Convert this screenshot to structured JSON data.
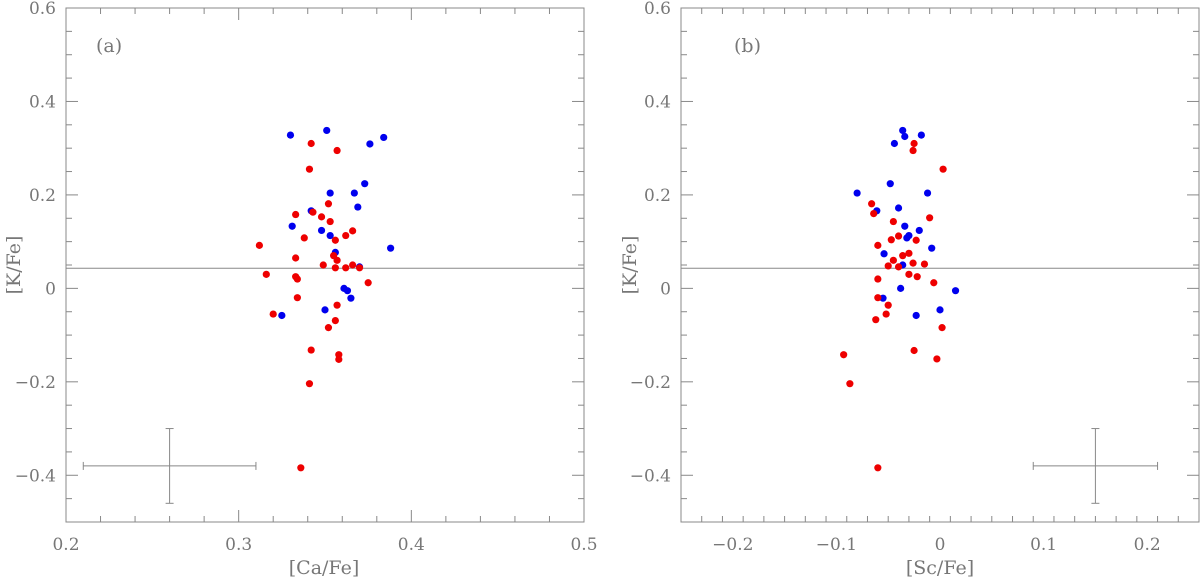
{
  "colors": {
    "red": "#ee0000",
    "blue": "#0000ee",
    "axis": "#888888"
  },
  "chart_data": [
    {
      "type": "scatter",
      "panel": "(a)",
      "xlabel": "[Ca/Fe]",
      "ylabel": "[K/Fe]",
      "xlim": [
        0.2,
        0.5
      ],
      "ylim": [
        -0.5,
        0.6
      ],
      "xticks": [
        0.2,
        0.3,
        0.4,
        0.5
      ],
      "xtick_labels": [
        "0.2",
        "0.3",
        "0.4",
        "0.5"
      ],
      "yticks": [
        -0.4,
        -0.2,
        0,
        0.2,
        0.4,
        0.6
      ],
      "ytick_labels": [
        "−0.4",
        "−0.2",
        "0",
        "0.2",
        "0.4",
        "0.6"
      ],
      "reference_line_y": 0.043,
      "error_bar": {
        "x": 0.26,
        "y": -0.38,
        "x_err": 0.05,
        "y_err": 0.08
      },
      "series": [
        {
          "name": "blue",
          "color": "#0000ee",
          "points": [
            [
              0.33,
              0.328
            ],
            [
              0.351,
              0.338
            ],
            [
              0.384,
              0.323
            ],
            [
              0.376,
              0.309
            ],
            [
              0.373,
              0.224
            ],
            [
              0.353,
              0.204
            ],
            [
              0.367,
              0.204
            ],
            [
              0.369,
              0.174
            ],
            [
              0.342,
              0.166
            ],
            [
              0.331,
              0.133
            ],
            [
              0.348,
              0.124
            ],
            [
              0.353,
              0.113
            ],
            [
              0.356,
              0.077
            ],
            [
              0.388,
              0.086
            ],
            [
              0.37,
              0.046
            ],
            [
              0.361,
              0.0
            ],
            [
              0.363,
              -0.005
            ],
            [
              0.365,
              -0.021
            ],
            [
              0.35,
              -0.046
            ],
            [
              0.325,
              -0.058
            ]
          ]
        },
        {
          "name": "red",
          "color": "#ee0000",
          "points": [
            [
              0.342,
              0.31
            ],
            [
              0.357,
              0.295
            ],
            [
              0.341,
              0.255
            ],
            [
              0.352,
              0.181
            ],
            [
              0.343,
              0.163
            ],
            [
              0.333,
              0.158
            ],
            [
              0.348,
              0.153
            ],
            [
              0.353,
              0.143
            ],
            [
              0.338,
              0.108
            ],
            [
              0.362,
              0.113
            ],
            [
              0.366,
              0.123
            ],
            [
              0.356,
              0.103
            ],
            [
              0.312,
              0.092
            ],
            [
              0.355,
              0.07
            ],
            [
              0.333,
              0.065
            ],
            [
              0.357,
              0.06
            ],
            [
              0.349,
              0.05
            ],
            [
              0.366,
              0.05
            ],
            [
              0.356,
              0.044
            ],
            [
              0.362,
              0.044
            ],
            [
              0.37,
              0.044
            ],
            [
              0.316,
              0.03
            ],
            [
              0.333,
              0.025
            ],
            [
              0.334,
              0.02
            ],
            [
              0.375,
              0.012
            ],
            [
              0.334,
              -0.02
            ],
            [
              0.357,
              -0.036
            ],
            [
              0.32,
              -0.055
            ],
            [
              0.356,
              -0.069
            ],
            [
              0.352,
              -0.084
            ],
            [
              0.342,
              -0.132
            ],
            [
              0.358,
              -0.142
            ],
            [
              0.358,
              -0.152
            ],
            [
              0.341,
              -0.204
            ],
            [
              0.336,
              -0.384
            ]
          ]
        }
      ]
    },
    {
      "type": "scatter",
      "panel": "(b)",
      "xlabel": "[Sc/Fe]",
      "ylabel": "[K/Fe]",
      "xlim": [
        -0.25,
        0.25
      ],
      "ylim": [
        -0.5,
        0.6
      ],
      "xticks": [
        -0.2,
        -0.1,
        0,
        0.1,
        0.2
      ],
      "xtick_labels": [
        "−0.2",
        "−0.1",
        "0",
        "0.1",
        "0.2"
      ],
      "yticks": [
        -0.4,
        -0.2,
        0,
        0.2,
        0.4,
        0.6
      ],
      "ytick_labels": [
        "−0.4",
        "−0.2",
        "0",
        "0.2",
        "0.4",
        "0.6"
      ],
      "reference_line_y": 0.043,
      "error_bar": {
        "x": 0.15,
        "y": -0.38,
        "x_err": 0.06,
        "y_err": 0.08
      },
      "series": [
        {
          "name": "blue",
          "color": "#0000ee",
          "points": [
            [
              -0.036,
              0.338
            ],
            [
              -0.018,
              0.328
            ],
            [
              -0.034,
              0.325
            ],
            [
              -0.044,
              0.31
            ],
            [
              -0.08,
              0.204
            ],
            [
              -0.048,
              0.224
            ],
            [
              -0.012,
              0.204
            ],
            [
              -0.061,
              0.166
            ],
            [
              -0.04,
              0.172
            ],
            [
              -0.034,
              0.133
            ],
            [
              -0.03,
              0.113
            ],
            [
              -0.032,
              0.108
            ],
            [
              -0.02,
              0.124
            ],
            [
              -0.008,
              0.086
            ],
            [
              -0.054,
              0.074
            ],
            [
              -0.036,
              0.05
            ],
            [
              -0.038,
              0.0
            ],
            [
              0.015,
              -0.005
            ],
            [
              -0.055,
              -0.021
            ],
            [
              0.0,
              -0.046
            ],
            [
              -0.023,
              -0.058
            ]
          ]
        },
        {
          "name": "red",
          "color": "#ee0000",
          "points": [
            [
              -0.025,
              0.31
            ],
            [
              -0.026,
              0.295
            ],
            [
              0.003,
              0.255
            ],
            [
              -0.066,
              0.181
            ],
            [
              -0.064,
              0.16
            ],
            [
              -0.045,
              0.143
            ],
            [
              -0.01,
              0.151
            ],
            [
              -0.04,
              0.112
            ],
            [
              -0.047,
              0.104
            ],
            [
              -0.06,
              0.092
            ],
            [
              -0.023,
              0.103
            ],
            [
              -0.036,
              0.07
            ],
            [
              -0.03,
              0.075
            ],
            [
              -0.045,
              0.06
            ],
            [
              -0.026,
              0.054
            ],
            [
              -0.04,
              0.046
            ],
            [
              -0.015,
              0.052
            ],
            [
              -0.05,
              0.048
            ],
            [
              -0.03,
              0.03
            ],
            [
              -0.022,
              0.025
            ],
            [
              -0.06,
              0.02
            ],
            [
              -0.006,
              0.012
            ],
            [
              -0.06,
              -0.02
            ],
            [
              -0.05,
              -0.036
            ],
            [
              -0.052,
              -0.055
            ],
            [
              -0.062,
              -0.067
            ],
            [
              0.002,
              -0.084
            ],
            [
              -0.025,
              -0.133
            ],
            [
              -0.093,
              -0.142
            ],
            [
              -0.003,
              -0.151
            ],
            [
              -0.087,
              -0.204
            ],
            [
              -0.06,
              -0.384
            ]
          ]
        }
      ]
    }
  ]
}
